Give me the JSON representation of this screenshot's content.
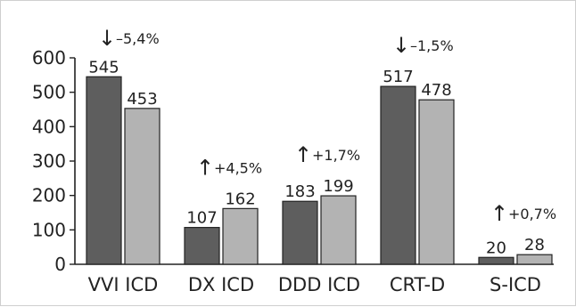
{
  "chart_data": {
    "type": "bar",
    "categories": [
      "VVI ICD",
      "DX ICD",
      "DDD ICD",
      "CRT-D",
      "S-ICD"
    ],
    "series": [
      {
        "values": [
          545,
          107,
          183,
          517,
          20
        ],
        "color": "#5e5e5e"
      },
      {
        "values": [
          453,
          162,
          199,
          478,
          28
        ],
        "color": "#b3b3b3"
      }
    ],
    "data_labels": {
      "series_0": [
        "545",
        "107",
        "183",
        "517",
        "20"
      ],
      "series_1": [
        "453",
        "162",
        "199",
        "478",
        "28"
      ]
    },
    "annotations": [
      {
        "arrow": "↓",
        "text": "–5,4%"
      },
      {
        "arrow": "↑",
        "text": "+4,5%"
      },
      {
        "arrow": "↑",
        "text": "+1,7%"
      },
      {
        "arrow": "↓",
        "text": "–1,5%"
      },
      {
        "arrow": "↑",
        "text": "+0,7%"
      }
    ],
    "title": "",
    "xlabel": "",
    "ylabel": "",
    "ylim": [
      0,
      600
    ],
    "yticks": [
      "0",
      "100",
      "200",
      "300",
      "400",
      "500",
      "600"
    ],
    "grid": false,
    "legend": "none",
    "bar_outline": "#222222",
    "axis_color": "#222222"
  }
}
